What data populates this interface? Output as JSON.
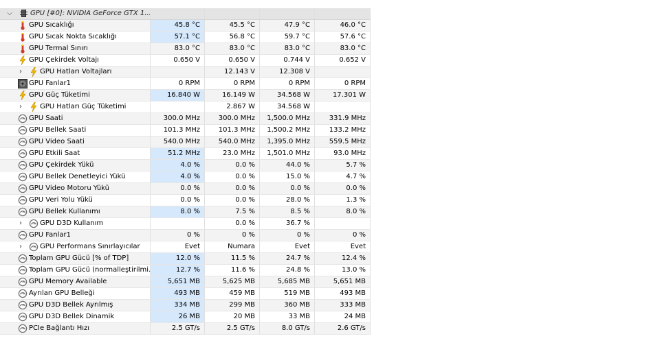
{
  "header": {
    "expand_glyph": "⌵",
    "title": "GPU [#0]: NVIDIA GeForce GTX 1..."
  },
  "rows": [
    {
      "label": "GPU Sıcaklığı",
      "icon": "thermometer-icon",
      "indent": 0,
      "expandable": false,
      "values": [
        "45.8 °C",
        "45.5 °C",
        "47.9 °C",
        "46.0 °C"
      ],
      "hl": true
    },
    {
      "label": "GPU Sıcak Nokta Sıcaklığı",
      "icon": "thermometer-icon",
      "indent": 0,
      "expandable": false,
      "values": [
        "57.1 °C",
        "56.8 °C",
        "59.7 °C",
        "57.6 °C"
      ],
      "hl": true
    },
    {
      "label": "GPU Termal Sınırı",
      "icon": "thermometer-icon",
      "indent": 0,
      "expandable": false,
      "values": [
        "83.0 °C",
        "83.0 °C",
        "83.0 °C",
        "83.0 °C"
      ],
      "hl": false
    },
    {
      "label": "GPU Çekirdek Voltajı",
      "icon": "lightning-icon",
      "indent": 0,
      "expandable": false,
      "values": [
        "0.650 V",
        "0.650 V",
        "0.744 V",
        "0.652 V"
      ],
      "hl": false
    },
    {
      "label": "GPU Hatları Voltajları",
      "icon": "lightning-icon",
      "indent": 1,
      "expandable": true,
      "values": [
        "",
        "12.143 V",
        "12.308 V",
        ""
      ],
      "hl": false
    },
    {
      "label": "GPU Fanlar1",
      "icon": "fan-icon",
      "indent": 0,
      "expandable": false,
      "values": [
        "0 RPM",
        "0 RPM",
        "0 RPM",
        "0 RPM"
      ],
      "hl": false
    },
    {
      "label": "GPU Güç Tüketimi",
      "icon": "lightning-icon",
      "indent": 0,
      "expandable": false,
      "values": [
        "16.840 W",
        "16.149 W",
        "34.568 W",
        "17.301 W"
      ],
      "hl": true
    },
    {
      "label": "GPU Hatları Güç Tüketimi",
      "icon": "lightning-icon",
      "indent": 1,
      "expandable": true,
      "values": [
        "",
        "2.867 W",
        "34.568 W",
        ""
      ],
      "hl": false
    },
    {
      "label": "GPU Saati",
      "icon": "gauge-icon",
      "indent": 0,
      "expandable": false,
      "values": [
        "300.0 MHz",
        "300.0 MHz",
        "1,500.0 MHz",
        "331.9 MHz"
      ],
      "hl": false
    },
    {
      "label": "GPU Bellek Saati",
      "icon": "gauge-icon",
      "indent": 0,
      "expandable": false,
      "values": [
        "101.3 MHz",
        "101.3 MHz",
        "1,500.2 MHz",
        "133.2 MHz"
      ],
      "hl": false
    },
    {
      "label": "GPU Video Saati",
      "icon": "gauge-icon",
      "indent": 0,
      "expandable": false,
      "values": [
        "540.0 MHz",
        "540.0 MHz",
        "1,395.0 MHz",
        "559.5 MHz"
      ],
      "hl": false
    },
    {
      "label": "GPU Etkili Saat",
      "icon": "gauge-icon",
      "indent": 0,
      "expandable": false,
      "values": [
        "51.2 MHz",
        "23.0 MHz",
        "1,501.0 MHz",
        "93.0 MHz"
      ],
      "hl": true
    },
    {
      "label": "GPU Çekirdek Yükü",
      "icon": "gauge-icon",
      "indent": 0,
      "expandable": false,
      "values": [
        "4.0 %",
        "0.0 %",
        "44.0 %",
        "5.7 %"
      ],
      "hl": true
    },
    {
      "label": "GPU Bellek Denetleyici Yükü",
      "icon": "gauge-icon",
      "indent": 0,
      "expandable": false,
      "values": [
        "4.0 %",
        "0.0 %",
        "15.0 %",
        "4.7 %"
      ],
      "hl": true
    },
    {
      "label": "GPU Video Motoru Yükü",
      "icon": "gauge-icon",
      "indent": 0,
      "expandable": false,
      "values": [
        "0.0 %",
        "0.0 %",
        "0.0 %",
        "0.0 %"
      ],
      "hl": false
    },
    {
      "label": "GPU Veri Yolu Yükü",
      "icon": "gauge-icon",
      "indent": 0,
      "expandable": false,
      "values": [
        "0.0 %",
        "0.0 %",
        "28.0 %",
        "1.3 %"
      ],
      "hl": false
    },
    {
      "label": "GPU Bellek Kullanımı",
      "icon": "gauge-icon",
      "indent": 0,
      "expandable": false,
      "values": [
        "8.0 %",
        "7.5 %",
        "8.5 %",
        "8.0 %"
      ],
      "hl": true
    },
    {
      "label": "GPU D3D Kullanım",
      "icon": "gauge-icon",
      "indent": 1,
      "expandable": true,
      "values": [
        "",
        "0.0 %",
        "36.7 %",
        ""
      ],
      "hl": false
    },
    {
      "label": "GPU Fanlar1",
      "icon": "gauge-icon",
      "indent": 0,
      "expandable": false,
      "values": [
        "0 %",
        "0 %",
        "0 %",
        "0 %"
      ],
      "hl": false
    },
    {
      "label": "GPU Performans Sınırlayıcılar",
      "icon": "gauge-icon",
      "indent": 1,
      "expandable": true,
      "values": [
        "Evet",
        "Numara",
        "Evet",
        "Evet"
      ],
      "hl": false
    },
    {
      "label": "Toplam GPU Gücü [% of TDP]",
      "icon": "gauge-icon",
      "indent": 0,
      "expandable": false,
      "values": [
        "12.0 %",
        "11.5 %",
        "24.7 %",
        "12.4 %"
      ],
      "hl": true
    },
    {
      "label": "Toplam GPU Gücü (normalleştirilmi...",
      "icon": "gauge-icon",
      "indent": 0,
      "expandable": false,
      "values": [
        "12.7 %",
        "11.6 %",
        "24.8 %",
        "13.0 %"
      ],
      "hl": true
    },
    {
      "label": "GPU Memory Available",
      "icon": "gauge-icon",
      "indent": 0,
      "expandable": false,
      "values": [
        "5,651 MB",
        "5,625 MB",
        "5,685 MB",
        "5,651 MB"
      ],
      "hl": true
    },
    {
      "label": "Ayrılan GPU Belleği",
      "icon": "gauge-icon",
      "indent": 0,
      "expandable": false,
      "values": [
        "493 MB",
        "459 MB",
        "519 MB",
        "493 MB"
      ],
      "hl": true
    },
    {
      "label": "GPU D3D Bellek Ayrılmış",
      "icon": "gauge-icon",
      "indent": 0,
      "expandable": false,
      "values": [
        "334 MB",
        "299 MB",
        "360 MB",
        "333 MB"
      ],
      "hl": true
    },
    {
      "label": "GPU D3D Bellek Dinamik",
      "icon": "gauge-icon",
      "indent": 0,
      "expandable": false,
      "values": [
        "26 MB",
        "20 MB",
        "33 MB",
        "24 MB"
      ],
      "hl": true
    },
    {
      "label": "PCIe Bağlantı Hızı",
      "icon": "gauge-icon",
      "indent": 0,
      "expandable": false,
      "values": [
        "2.5 GT/s",
        "2.5 GT/s",
        "8.0 GT/s",
        "2.6 GT/s"
      ],
      "hl": false
    }
  ],
  "colors": {
    "header_bg": "#e4e4e4",
    "highlight_bg": "#d6e8fb",
    "alt_row_bg": "#f3f3f3",
    "thermometer_red": "#d23a2a",
    "thermometer_yellow": "#f2c200",
    "lightning_yellow": "#f2b800",
    "gauge_gray": "#6e6e6e"
  }
}
